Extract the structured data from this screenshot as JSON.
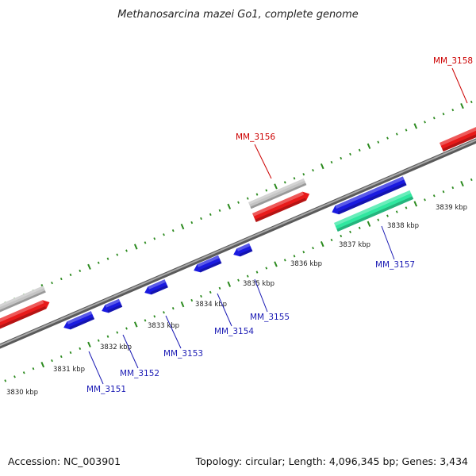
{
  "title": "Methanosarcina mazei Go1, complete genome",
  "footer": {
    "accession": "Accession: NC_003901",
    "summary": "Topology: circular; Length: 4,096,345 bp; Genes: 3,434"
  },
  "colors": {
    "tick": "#2b8a1e",
    "gene_red": "#e81a1a",
    "gene_blue": "#1a1ae0",
    "gene_gray": "#c4c4c4",
    "gene_green": "#30e7a0",
    "label_red": "#cc0000",
    "label_blue": "#1a1ab4",
    "backbone": "#8a8a8a"
  },
  "axis": {
    "tick_labels": [
      "3830 kbp",
      "3831 kbp",
      "3832 kbp",
      "3833 kbp",
      "3834 kbp",
      "3835 kbp",
      "3836 kbp",
      "3837 kbp",
      "3838 kbp",
      "3839 kbp"
    ]
  },
  "genes": [
    {
      "label": "MM_3151",
      "strand": "minus"
    },
    {
      "label": "MM_3152",
      "strand": "minus"
    },
    {
      "label": "MM_3153",
      "strand": "minus"
    },
    {
      "label": "MM_3154",
      "strand": "minus"
    },
    {
      "label": "MM_3155",
      "strand": "minus"
    },
    {
      "label": "MM_3156",
      "strand": "plus"
    },
    {
      "label": "MM_3157",
      "strand": "minus"
    },
    {
      "label": "MM_3158",
      "strand": "plus"
    }
  ]
}
